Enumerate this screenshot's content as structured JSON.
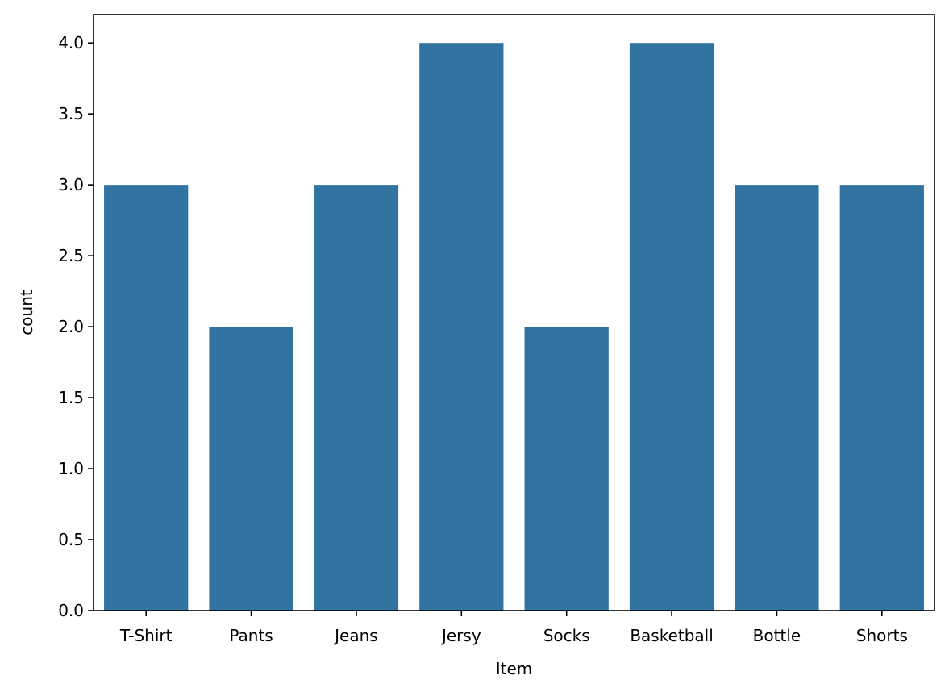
{
  "chart_data": {
    "type": "bar",
    "title": "",
    "xlabel": "Item",
    "ylabel": "count",
    "categories": [
      "T-Shirt",
      "Pants",
      "Jeans",
      "Jersy",
      "Socks",
      "Basketball",
      "Bottle",
      "Shorts"
    ],
    "values": [
      3,
      2,
      3,
      4,
      2,
      4,
      3,
      3
    ],
    "ylim": [
      0,
      4.2
    ],
    "yticks": [
      "0.0",
      "0.5",
      "1.0",
      "1.5",
      "2.0",
      "2.5",
      "3.0",
      "3.5",
      "4.0"
    ],
    "grid": false,
    "bar_color": "#3274a1"
  }
}
